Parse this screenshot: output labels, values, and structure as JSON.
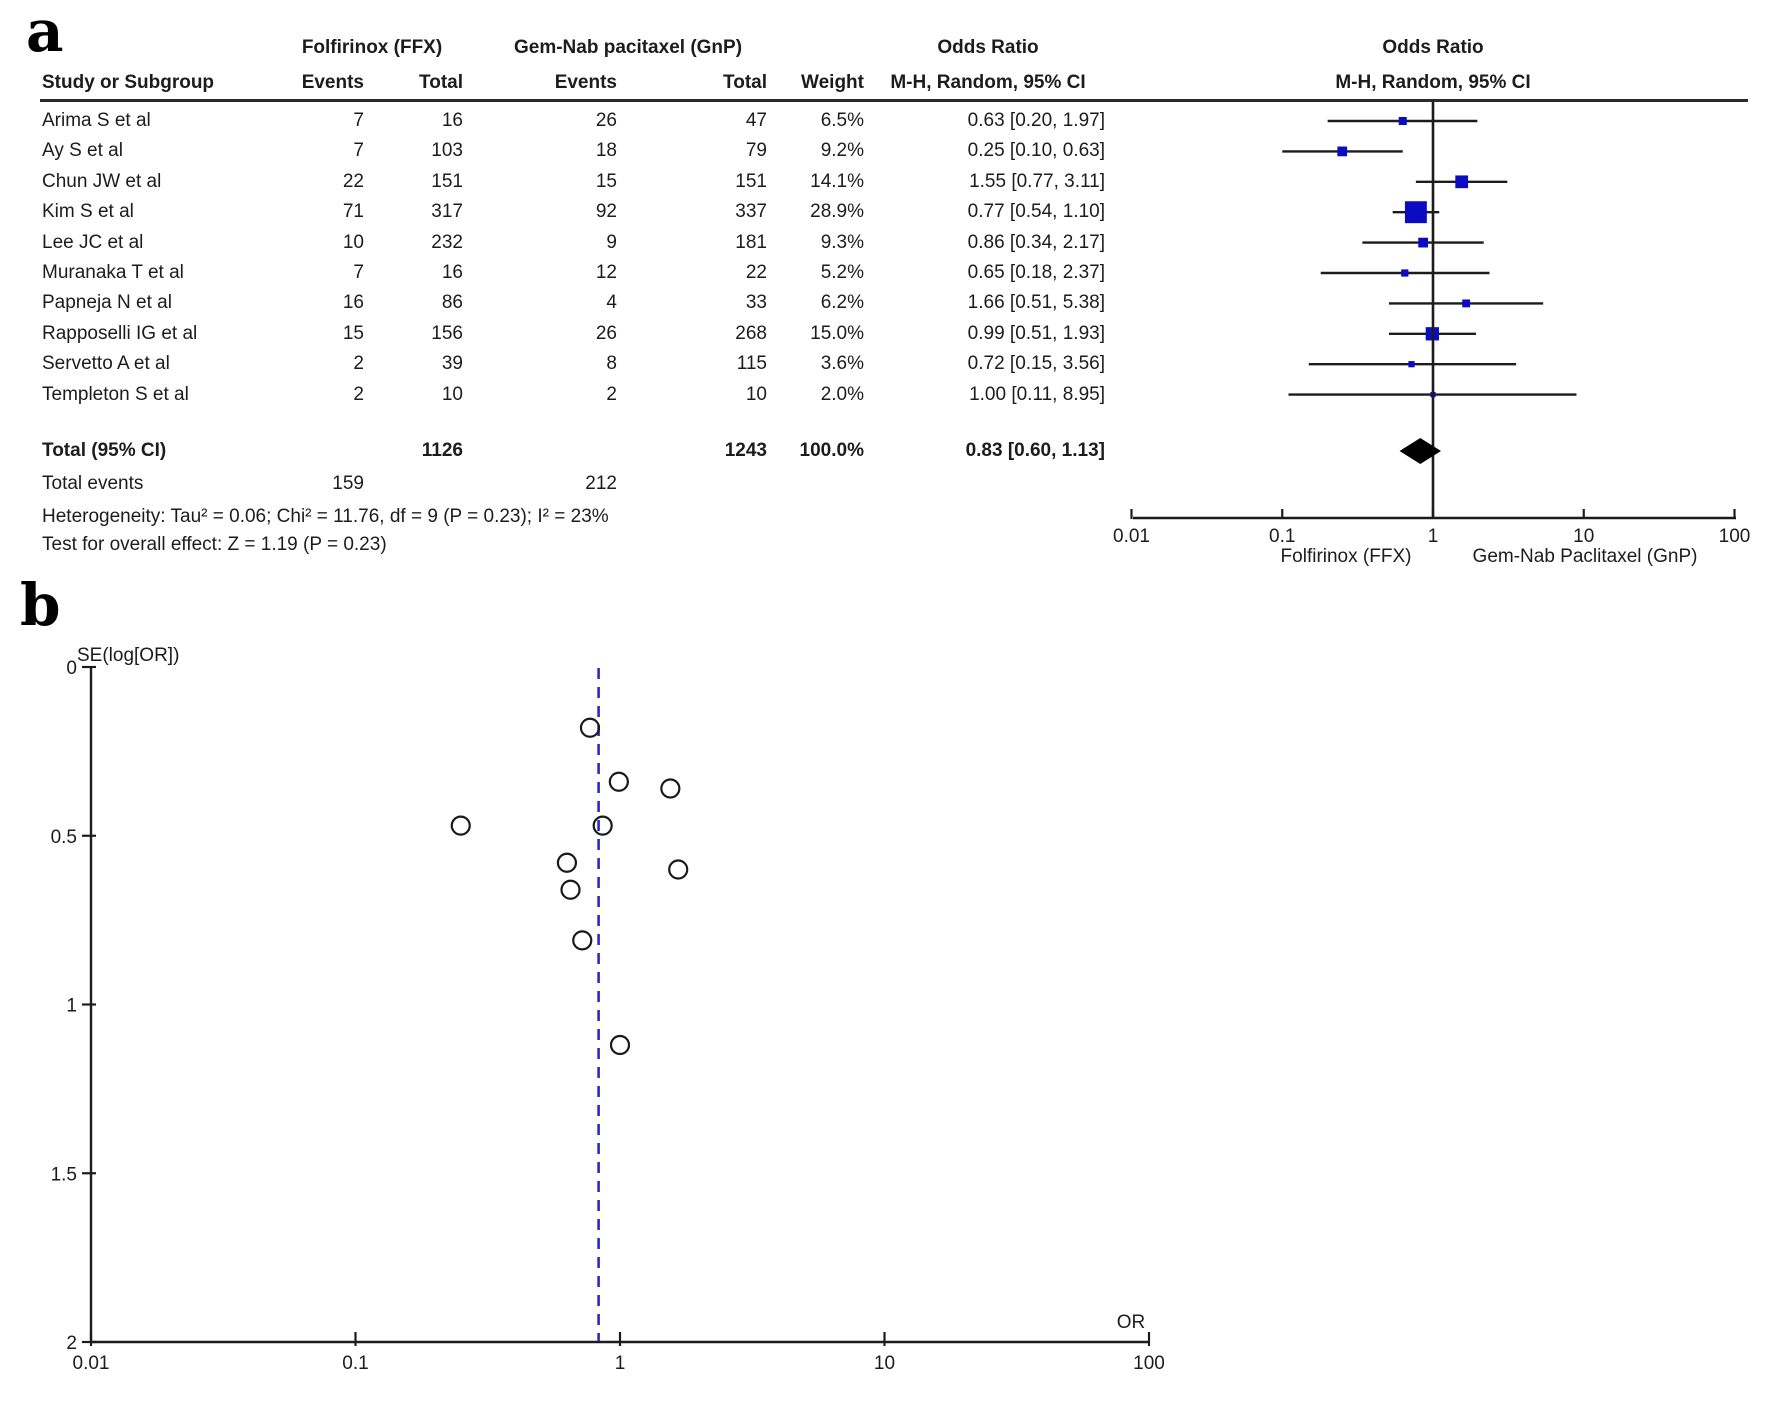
{
  "figure": {
    "panel_a_letter": "a",
    "panel_b_letter": "b"
  },
  "panel_a": {
    "group_header_ffx": "Folfirinox (FFX)",
    "group_header_gnp": "Gem-Nab pacitaxel (GnP)",
    "group_header_or_text": "Odds Ratio",
    "group_header_or_plot": "Odds Ratio",
    "col_study": "Study or Subgroup",
    "col_events_ffx": "Events",
    "col_total_ffx": "Total",
    "col_events_gnp": "Events",
    "col_total_gnp": "Total",
    "col_weight": "Weight",
    "col_mh_text": "M-H, Random, 95% CI",
    "col_mh_plot": "M-H, Random, 95% CI",
    "total_label": "Total (95% CI)",
    "total_ffx": "1126",
    "total_gnp": "1243",
    "total_weight": "100.0%",
    "total_or_text": "0.83 [0.60, 1.13]",
    "total_events_label": "Total events",
    "total_events_ffx": "159",
    "total_events_gnp": "212",
    "heterogeneity": "Heterogeneity: Tau² = 0.06; Chi² = 11.76, df = 9 (P = 0.23); I² = 23%",
    "overall_effect": "Test for overall effect: Z = 1.19 (P = 0.23)",
    "favours_left": "Folfirinox (FFX)",
    "favours_right": "Gem-Nab Paclitaxel (GnP)",
    "marker_color": "#0b0bc4",
    "line_color": "#1c1c1c"
  },
  "panel_b": {
    "ylabel": "SE(log[OR])",
    "xlabel": "OR",
    "ref_line_color": "#2929cc"
  },
  "chart_data": [
    {
      "type": "forest",
      "title": "Odds Ratio",
      "effect_measure": "M-H, Random, 95% CI",
      "x_scale": "log10",
      "x_ticks": [
        "0.01",
        "0.1",
        "1",
        "10",
        "100"
      ],
      "x_tick_values": [
        0.01,
        0.1,
        1,
        10,
        100
      ],
      "null_line": 1,
      "studies": [
        {
          "name": "Arima S et al",
          "events_ffx": "7",
          "total_ffx": "16",
          "events_gnp": "26",
          "total_gnp": "47",
          "weight_text": "6.5%",
          "weight_pct": 6.5,
          "or": 0.63,
          "ci_low": 0.2,
          "ci_high": 1.97,
          "or_text": "0.63 [0.20, 1.97]"
        },
        {
          "name": "Ay S et al",
          "events_ffx": "7",
          "total_ffx": "103",
          "events_gnp": "18",
          "total_gnp": "79",
          "weight_text": "9.2%",
          "weight_pct": 9.2,
          "or": 0.25,
          "ci_low": 0.1,
          "ci_high": 0.63,
          "or_text": "0.25 [0.10, 0.63]"
        },
        {
          "name": "Chun JW et al",
          "events_ffx": "22",
          "total_ffx": "151",
          "events_gnp": "15",
          "total_gnp": "151",
          "weight_text": "14.1%",
          "weight_pct": 14.1,
          "or": 1.55,
          "ci_low": 0.77,
          "ci_high": 3.11,
          "or_text": "1.55 [0.77, 3.11]"
        },
        {
          "name": "Kim S et al",
          "events_ffx": "71",
          "total_ffx": "317",
          "events_gnp": "92",
          "total_gnp": "337",
          "weight_text": "28.9%",
          "weight_pct": 28.9,
          "or": 0.77,
          "ci_low": 0.54,
          "ci_high": 1.1,
          "or_text": "0.77 [0.54, 1.10]"
        },
        {
          "name": "Lee JC et al",
          "events_ffx": "10",
          "total_ffx": "232",
          "events_gnp": "9",
          "total_gnp": "181",
          "weight_text": "9.3%",
          "weight_pct": 9.3,
          "or": 0.86,
          "ci_low": 0.34,
          "ci_high": 2.17,
          "or_text": "0.86 [0.34, 2.17]"
        },
        {
          "name": "Muranaka T et al",
          "events_ffx": "7",
          "total_ffx": "16",
          "events_gnp": "12",
          "total_gnp": "22",
          "weight_text": "5.2%",
          "weight_pct": 5.2,
          "or": 0.65,
          "ci_low": 0.18,
          "ci_high": 2.37,
          "or_text": "0.65 [0.18, 2.37]"
        },
        {
          "name": "Papneja N et al",
          "events_ffx": "16",
          "total_ffx": "86",
          "events_gnp": "4",
          "total_gnp": "33",
          "weight_text": "6.2%",
          "weight_pct": 6.2,
          "or": 1.66,
          "ci_low": 0.51,
          "ci_high": 5.38,
          "or_text": "1.66 [0.51, 5.38]"
        },
        {
          "name": "Rapposelli IG et al",
          "events_ffx": "15",
          "total_ffx": "156",
          "events_gnp": "26",
          "total_gnp": "268",
          "weight_text": "15.0%",
          "weight_pct": 15.0,
          "or": 0.99,
          "ci_low": 0.51,
          "ci_high": 1.93,
          "or_text": "0.99 [0.51, 1.93]"
        },
        {
          "name": "Servetto A et al",
          "events_ffx": "2",
          "total_ffx": "39",
          "events_gnp": "8",
          "total_gnp": "115",
          "weight_text": "3.6%",
          "weight_pct": 3.6,
          "or": 0.72,
          "ci_low": 0.15,
          "ci_high": 3.56,
          "or_text": "0.72 [0.15, 3.56]"
        },
        {
          "name": "Templeton S et al",
          "events_ffx": "2",
          "total_ffx": "10",
          "events_gnp": "2",
          "total_gnp": "10",
          "weight_text": "2.0%",
          "weight_pct": 2.0,
          "or": 1.0,
          "ci_low": 0.11,
          "ci_high": 8.95,
          "or_text": "1.00 [0.11, 8.95]"
        }
      ],
      "total": {
        "or": 0.83,
        "ci_low": 0.6,
        "ci_high": 1.13
      },
      "x_axis_labels": [
        "Folfirinox (FFX)",
        "Gem-Nab Paclitaxel (GnP)"
      ]
    },
    {
      "type": "scatter",
      "subtype": "funnel",
      "ylabel": "SE(log[OR])",
      "xlabel": "OR",
      "x_scale": "log10",
      "x_ticks": [
        "0.01",
        "0.1",
        "1",
        "10",
        "100"
      ],
      "x_tick_values": [
        0.01,
        0.1,
        1,
        10,
        100
      ],
      "y_ticks": [
        "0",
        "0.5",
        "1",
        "1.5",
        "2"
      ],
      "y_tick_values": [
        0,
        0.5,
        1,
        1.5,
        2
      ],
      "ylim": [
        0,
        2
      ],
      "y_reversed": true,
      "reference_line_or": 0.83,
      "points": [
        {
          "study": "Kim S et al",
          "or": 0.77,
          "se": 0.18
        },
        {
          "study": "Rapposelli IG et al",
          "or": 0.99,
          "se": 0.34
        },
        {
          "study": "Chun JW et al",
          "or": 1.55,
          "se": 0.36
        },
        {
          "study": "Ay S et al",
          "or": 0.25,
          "se": 0.47
        },
        {
          "study": "Lee JC et al",
          "or": 0.86,
          "se": 0.47
        },
        {
          "study": "Arima S et al",
          "or": 0.63,
          "se": 0.58
        },
        {
          "study": "Papneja N et al",
          "or": 1.66,
          "se": 0.6
        },
        {
          "study": "Muranaka T et al",
          "or": 0.65,
          "se": 0.66
        },
        {
          "study": "Servetto A et al",
          "or": 0.72,
          "se": 0.81
        },
        {
          "study": "Templeton S et al",
          "or": 1.0,
          "se": 1.12
        }
      ]
    }
  ]
}
